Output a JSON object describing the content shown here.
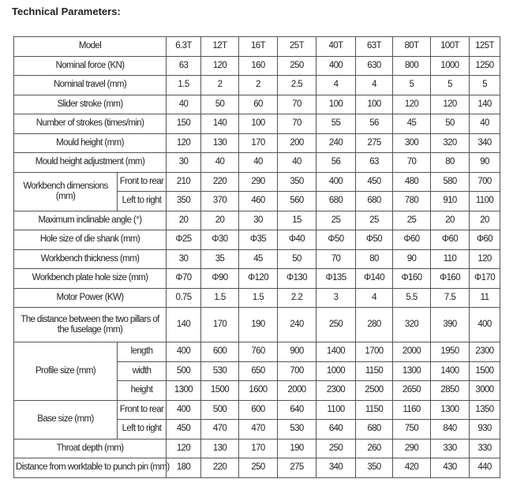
{
  "title": "Technical Parameters:",
  "table": {
    "rows": [
      {
        "label": "Model",
        "values": [
          "6.3T",
          "12T",
          "16T",
          "25T",
          "40T",
          "63T",
          "80T",
          "100T",
          "125T"
        ]
      },
      {
        "label": "Nominal force (KN)",
        "values": [
          63,
          120,
          160,
          250,
          400,
          630,
          800,
          1000,
          1250
        ]
      },
      {
        "label": "Nominal travel (mm)",
        "values": [
          1.5,
          2,
          2,
          2.5,
          4,
          4,
          5,
          5,
          5
        ]
      },
      {
        "label": "Slider stroke (mm)",
        "values": [
          40,
          50,
          60,
          70,
          100,
          100,
          120,
          120,
          140
        ]
      },
      {
        "label": "Number of strokes (times/min)",
        "values": [
          150,
          140,
          100,
          70,
          55,
          56,
          45,
          50,
          40
        ]
      },
      {
        "label": "Mould height (mm)",
        "values": [
          120,
          130,
          170,
          200,
          240,
          275,
          300,
          320,
          340
        ]
      },
      {
        "label": "Mould height adjustment (mm)",
        "values": [
          30,
          40,
          40,
          40,
          56,
          63,
          70,
          80,
          90
        ]
      },
      {
        "label": "Workbench dimensions (mm)",
        "parts": [
          {
            "label": "Front to rear",
            "values": [
              210,
              220,
              290,
              350,
              400,
              450,
              480,
              580,
              700
            ]
          },
          {
            "label": "Left to right",
            "values": [
              350,
              370,
              460,
              560,
              680,
              680,
              780,
              910,
              1100
            ]
          }
        ]
      },
      {
        "label": "Maximum inclinable angle (°)",
        "values": [
          20,
          20,
          30,
          15,
          25,
          25,
          25,
          20,
          20
        ]
      },
      {
        "label": "Hole size of die shank (mm)",
        "values": [
          "Φ25",
          "Φ30",
          "Φ35",
          "Φ40",
          "Φ50",
          "Φ50",
          "Φ60",
          "Φ60",
          "Φ60"
        ]
      },
      {
        "label": "Workbench thickness (mm)",
        "values": [
          30,
          35,
          45,
          50,
          70,
          80,
          90,
          110,
          120
        ]
      },
      {
        "label": "Workbench plate hole size (mm)",
        "values": [
          "Φ70",
          "Φ90",
          "Φ120",
          "Φ130",
          "Φ135",
          "Φ140",
          "Φ160",
          "Φ160",
          "Φ170"
        ]
      },
      {
        "label": "Motor Power (KW)",
        "values": [
          0.75,
          1.5,
          1.5,
          2.2,
          3,
          4,
          5.5,
          7.5,
          11
        ]
      },
      {
        "label": "The distance between the two pillars of the fuselage (mm)",
        "values": [
          140,
          170,
          190,
          240,
          250,
          280,
          320,
          390,
          400
        ]
      },
      {
        "label": "Profile size (mm)",
        "parts": [
          {
            "label": "length",
            "values": [
              400,
              600,
              760,
              900,
              1400,
              1700,
              2000,
              1950,
              2300
            ]
          },
          {
            "label": "width",
            "values": [
              500,
              530,
              650,
              700,
              1000,
              1150,
              1300,
              1400,
              1500
            ]
          },
          {
            "label": "height",
            "values": [
              1300,
              1500,
              1600,
              2000,
              2300,
              2500,
              2650,
              2850,
              3000
            ]
          }
        ]
      },
      {
        "label": "Base size (mm)",
        "parts": [
          {
            "label": "Front to rear",
            "values": [
              400,
              500,
              600,
              640,
              1100,
              1150,
              1160,
              1300,
              1350
            ]
          },
          {
            "label": "Left to right",
            "values": [
              450,
              470,
              470,
              530,
              640,
              680,
              750,
              840,
              930
            ]
          }
        ]
      },
      {
        "label": "Throat depth (mm)",
        "values": [
          120,
          130,
          170,
          190,
          250,
          260,
          290,
          330,
          330
        ]
      },
      {
        "label": "Distance from worktable to punch pin (mm)",
        "values": [
          180,
          220,
          250,
          275,
          340,
          350,
          420,
          430,
          440
        ]
      }
    ]
  }
}
